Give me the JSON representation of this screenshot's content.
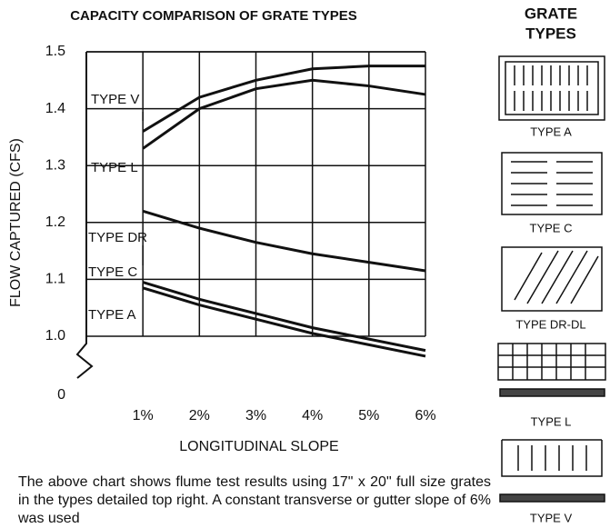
{
  "chart_data": {
    "type": "line",
    "title": "CAPACITY COMPARISON OF GRATE TYPES",
    "x_label": "LONGITUDINAL SLOPE",
    "y_label": "FLOW CAPTURED (CFS)",
    "x": [
      1,
      2,
      3,
      4,
      5,
      6
    ],
    "xlim": [
      0,
      6
    ],
    "xticks": [
      {
        "value": 1,
        "label": "1%"
      },
      {
        "value": 2,
        "label": "2%"
      },
      {
        "value": 3,
        "label": "3%"
      },
      {
        "value": 4,
        "label": "4%"
      },
      {
        "value": 5,
        "label": "5%"
      },
      {
        "value": 6,
        "label": "6%"
      }
    ],
    "ylim": [
      0,
      1.5
    ],
    "yticks": [
      0,
      {
        "value": 1.0,
        "label": "1.0"
      },
      1.1,
      1.2,
      1.3,
      1.4,
      1.5
    ],
    "axis_break": true,
    "grid": true,
    "series": [
      {
        "name": "TYPE V",
        "color": "#111111",
        "values": [
          1.36,
          1.42,
          1.45,
          1.47,
          1.475,
          1.475
        ]
      },
      {
        "name": "TYPE L",
        "color": "#111111",
        "values": [
          1.33,
          1.4,
          1.435,
          1.45,
          1.44,
          1.425
        ]
      },
      {
        "name": "TYPE DR",
        "color": "#111111",
        "values": [
          1.22,
          1.19,
          1.165,
          1.145,
          1.13,
          1.115
        ]
      },
      {
        "name": "TYPE C",
        "color": "#111111",
        "values": [
          1.095,
          1.065,
          1.04,
          1.015,
          0.995,
          0.975
        ]
      },
      {
        "name": "TYPE A",
        "color": "#111111",
        "values": [
          1.085,
          1.055,
          1.03,
          1.005,
          0.985,
          0.965
        ]
      }
    ]
  },
  "side_panel": {
    "title": [
      "GRATE",
      "TYPES"
    ],
    "items": [
      "TYPE A",
      "TYPE C",
      "TYPE DR-DL",
      "TYPE L",
      "TYPE V"
    ]
  },
  "caption": "The above chart shows flume test results using 17\" x 20\" full size grates in the types detailed top right. A constant transverse or gutter slope of 6% was used"
}
